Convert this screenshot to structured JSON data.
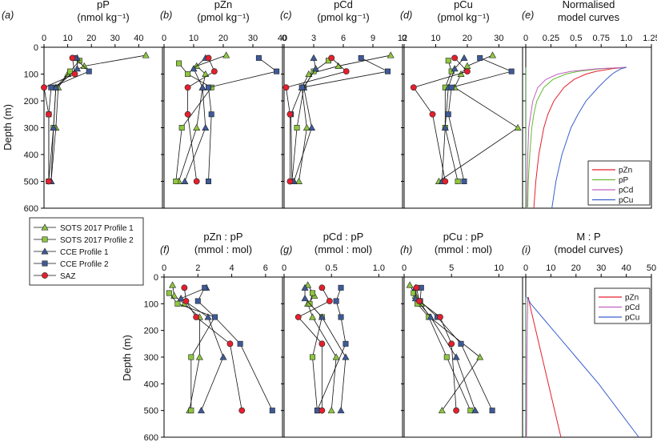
{
  "y_axis_label": "Depth (m)",
  "legend": {
    "entries": [
      {
        "label": "SOTS 2017 Profile 1",
        "series": "sots1"
      },
      {
        "label": "SOTS 2017 Profile 2",
        "series": "sots2"
      },
      {
        "label": "CCE Profile 1",
        "series": "cce1"
      },
      {
        "label": "CCE Profile 2",
        "series": "cce2"
      },
      {
        "label": "SAZ",
        "series": "saz"
      }
    ]
  },
  "styles": {
    "sots1": {
      "marker": "triangle",
      "color": "#8dc63f"
    },
    "sots2": {
      "marker": "square",
      "color": "#8dc63f"
    },
    "cce1": {
      "marker": "triangle",
      "color": "#3d5a99"
    },
    "cce2": {
      "marker": "square",
      "color": "#3d5a99"
    },
    "saz": {
      "marker": "circle",
      "color": "#e4202e"
    },
    "curve_colors": {
      "pZn": "#e4202e",
      "pP": "#66bb33",
      "pCd": "#c060c0",
      "pCu": "#3a5fcd"
    }
  },
  "chart_data": [
    {
      "id": "a",
      "panel_label": "(a)",
      "type": "line",
      "title_lines": [
        "pP",
        "(nmol kg⁻¹)"
      ],
      "xlim": [
        0,
        50
      ],
      "xticks": [
        "0",
        "10",
        "20",
        "30",
        "40"
      ],
      "ylim": [
        0,
        600
      ],
      "yticks": [
        "0",
        "100",
        "200",
        "300",
        "400",
        "500",
        "600"
      ],
      "series": [
        {
          "key": "sots1",
          "depths": [
            30,
            70,
            100,
            150,
            300,
            500
          ],
          "values": [
            43,
            17,
            10,
            6,
            5,
            3
          ]
        },
        {
          "key": "sots2",
          "depths": [
            50,
            90,
            150,
            300,
            500
          ],
          "values": [
            15,
            11,
            5,
            4,
            2
          ]
        },
        {
          "key": "cce1",
          "depths": [
            40,
            80,
            150,
            300,
            500
          ],
          "values": [
            14,
            14,
            5,
            4,
            3
          ]
        },
        {
          "key": "cce2",
          "depths": [
            40,
            90,
            150,
            250,
            500
          ],
          "values": [
            13,
            19,
            3,
            2,
            2
          ]
        },
        {
          "key": "saz",
          "depths": [
            40,
            100,
            150,
            250,
            500
          ],
          "values": [
            12,
            13,
            0,
            2,
            2
          ]
        }
      ]
    },
    {
      "id": "b",
      "panel_label": "(b)",
      "type": "line",
      "title_lines": [
        "pZn",
        "(pmol kg⁻¹)"
      ],
      "xlim": [
        0,
        40
      ],
      "xticks": [
        "0",
        "10",
        "20",
        "30",
        "40"
      ],
      "ylim": [
        0,
        600
      ],
      "series": [
        {
          "key": "sots1",
          "depths": [
            30,
            70,
            100,
            150,
            300,
            500
          ],
          "values": [
            21,
            11,
            14,
            13,
            11,
            5
          ]
        },
        {
          "key": "sots2",
          "depths": [
            60,
            100,
            150,
            300,
            500
          ],
          "values": [
            5,
            8,
            16,
            6,
            4
          ]
        },
        {
          "key": "cce1",
          "depths": [
            40,
            80,
            150,
            300,
            500
          ],
          "values": [
            14,
            10,
            13,
            14,
            7
          ]
        },
        {
          "key": "cce2",
          "depths": [
            40,
            90,
            150,
            250,
            500
          ],
          "values": [
            32,
            38,
            15,
            16,
            15
          ]
        },
        {
          "key": "saz",
          "depths": [
            40,
            90,
            150,
            250,
            500
          ],
          "values": [
            15,
            17,
            8,
            8,
            11
          ]
        }
      ]
    },
    {
      "id": "c",
      "panel_label": "(c)",
      "type": "line",
      "title_lines": [
        "pCd",
        "(pmol kg⁻¹)"
      ],
      "xlim": [
        0,
        12
      ],
      "xticks": [
        "0",
        "3",
        "6",
        "9",
        "12"
      ],
      "ylim": [
        0,
        600
      ],
      "series": [
        {
          "key": "sots1",
          "depths": [
            30,
            70,
            100,
            150,
            300,
            500
          ],
          "values": [
            10.8,
            5.5,
            2.5,
            1.8,
            2.3,
            1.5
          ]
        },
        {
          "key": "sots2",
          "depths": [
            50,
            90,
            150,
            300,
            500
          ],
          "values": [
            4.5,
            3.0,
            2.0,
            1.3,
            0.8
          ]
        },
        {
          "key": "cce1",
          "depths": [
            40,
            80,
            150,
            300,
            500
          ],
          "values": [
            3.0,
            3.2,
            2.0,
            2.8,
            1.0
          ]
        },
        {
          "key": "cce2",
          "depths": [
            40,
            90,
            150,
            250,
            500
          ],
          "values": [
            7.8,
            10.5,
            1.8,
            0.7,
            0.8
          ]
        },
        {
          "key": "saz",
          "depths": [
            40,
            90,
            150,
            250,
            500
          ],
          "values": [
            4.8,
            6.3,
            0.2,
            0.6,
            0.6
          ]
        }
      ]
    },
    {
      "id": "d",
      "panel_label": "(d)",
      "type": "line",
      "title_lines": [
        "pCu",
        "(pmol kg⁻¹)"
      ],
      "xlim": [
        0,
        37.5
      ],
      "xticks": [
        "0",
        "10",
        "20",
        "30"
      ],
      "ylim": [
        0,
        600
      ],
      "series": [
        {
          "key": "sots1",
          "depths": [
            30,
            70,
            100,
            150,
            300,
            500
          ],
          "values": [
            28,
            20,
            18,
            16,
            36,
            11
          ]
        },
        {
          "key": "sots2",
          "depths": [
            50,
            90,
            150,
            300,
            500
          ],
          "values": [
            14,
            15,
            13,
            13,
            17
          ]
        },
        {
          "key": "cce1",
          "depths": [
            40,
            80,
            150,
            300,
            500
          ],
          "values": [
            19,
            16,
            14,
            13,
            12
          ]
        },
        {
          "key": "cce2",
          "depths": [
            40,
            90,
            150,
            250,
            500
          ],
          "values": [
            24,
            34,
            15,
            14,
            19
          ]
        },
        {
          "key": "saz",
          "depths": [
            40,
            90,
            150,
            250,
            500
          ],
          "values": [
            16,
            20,
            3,
            9,
            13
          ]
        }
      ]
    },
    {
      "id": "e",
      "panel_label": "(e)",
      "type": "line",
      "title_lines": [
        "Normalised",
        "model curves"
      ],
      "xlim": [
        0,
        1.25
      ],
      "xticks": [
        "0",
        "0.25",
        "0.5",
        "0.75",
        "1.0",
        "1.25"
      ],
      "ylim": [
        0,
        600
      ],
      "legend_labels": [
        "pZn",
        "pP",
        "pCd",
        "pCu"
      ],
      "curves": [
        {
          "key": "pZn",
          "depths": [
            75,
            80,
            90,
            100,
            120,
            150,
            200,
            250,
            300,
            400,
            500,
            600
          ],
          "values": [
            1.0,
            0.86,
            0.7,
            0.6,
            0.48,
            0.38,
            0.28,
            0.22,
            0.18,
            0.13,
            0.1,
            0.08
          ]
        },
        {
          "key": "pP",
          "depths": [
            75,
            80,
            90,
            100,
            120,
            150,
            200,
            250,
            300,
            400,
            500,
            600
          ],
          "values": [
            1.0,
            0.76,
            0.52,
            0.4,
            0.27,
            0.18,
            0.11,
            0.08,
            0.06,
            0.04,
            0.025,
            0.02
          ]
        },
        {
          "key": "pCd",
          "depths": [
            75,
            80,
            90,
            100,
            120,
            150,
            200,
            250,
            300,
            400,
            500,
            600
          ],
          "values": [
            1.0,
            0.72,
            0.45,
            0.32,
            0.2,
            0.12,
            0.07,
            0.05,
            0.03,
            0.02,
            0.015,
            0.01
          ]
        },
        {
          "key": "pCu",
          "depths": [
            75,
            80,
            90,
            100,
            120,
            150,
            200,
            250,
            300,
            400,
            500,
            600
          ],
          "values": [
            1.0,
            0.95,
            0.9,
            0.86,
            0.8,
            0.72,
            0.6,
            0.52,
            0.45,
            0.36,
            0.3,
            0.26
          ]
        }
      ]
    },
    {
      "id": "f",
      "panel_label": "(f)",
      "type": "line",
      "title_lines": [
        "pZn : pP",
        "(mmol : mol)"
      ],
      "xlim": [
        0,
        7
      ],
      "xticks": [
        "0",
        "2",
        "4",
        "6"
      ],
      "ylim": [
        0,
        600
      ],
      "yticks": [
        "0",
        "100",
        "200",
        "300",
        "400",
        "500",
        "600"
      ],
      "series": [
        {
          "key": "sots1",
          "depths": [
            30,
            70,
            100,
            150,
            300,
            500
          ],
          "values": [
            0.5,
            0.6,
            1.2,
            2.1,
            2.1,
            1.5
          ]
        },
        {
          "key": "sots2",
          "depths": [
            60,
            100,
            150,
            300,
            500
          ],
          "values": [
            0.3,
            0.8,
            3.0,
            1.6,
            1.6
          ]
        },
        {
          "key": "cce1",
          "depths": [
            40,
            80,
            150,
            300,
            500
          ],
          "values": [
            2.5,
            1.0,
            2.6,
            3.5,
            2.2
          ]
        },
        {
          "key": "cce2",
          "depths": [
            40,
            90,
            150,
            250,
            500
          ],
          "values": [
            2.4,
            2.0,
            3.0,
            4.5,
            6.4
          ]
        },
        {
          "key": "saz",
          "depths": [
            40,
            90,
            150,
            250,
            500
          ],
          "values": [
            1.2,
            1.3,
            1.9,
            3.9,
            4.6
          ]
        }
      ]
    },
    {
      "id": "g",
      "panel_label": "(g)",
      "type": "line",
      "title_lines": [
        "pCd : pP",
        "(mmol : mol)"
      ],
      "xlim": [
        0,
        1.25
      ],
      "xticks": [
        "0",
        "0.5",
        "1.0"
      ],
      "ylim": [
        0,
        600
      ],
      "series": [
        {
          "key": "sots1",
          "depths": [
            30,
            70,
            100,
            150,
            300,
            500
          ],
          "values": [
            0.25,
            0.32,
            0.25,
            0.3,
            0.55,
            0.5
          ]
        },
        {
          "key": "sots2",
          "depths": [
            60,
            100,
            150,
            300,
            500
          ],
          "values": [
            0.3,
            0.27,
            0.4,
            0.3,
            0.35
          ]
        },
        {
          "key": "cce1",
          "depths": [
            40,
            80,
            150,
            300,
            500
          ],
          "values": [
            0.22,
            0.22,
            0.4,
            0.65,
            0.6
          ]
        },
        {
          "key": "cce2",
          "depths": [
            40,
            90,
            150,
            250,
            500
          ],
          "values": [
            0.6,
            0.55,
            0.6,
            0.65,
            0.35
          ]
        },
        {
          "key": "saz",
          "depths": [
            40,
            90,
            150,
            250,
            500
          ],
          "values": [
            0.4,
            0.48,
            0.15,
            0.4,
            0.4
          ]
        }
      ]
    },
    {
      "id": "h",
      "panel_label": "(h)",
      "type": "line",
      "title_lines": [
        "pCu : pP",
        "(mmol : mol)"
      ],
      "xlim": [
        0,
        12.5
      ],
      "xticks": [
        "0",
        "5",
        "10"
      ],
      "ylim": [
        0,
        600
      ],
      "series": [
        {
          "key": "sots1",
          "depths": [
            30,
            70,
            100,
            150,
            300,
            500
          ],
          "values": [
            0.6,
            1.2,
            1.8,
            2.7,
            8.0,
            4.0
          ]
        },
        {
          "key": "sots2",
          "depths": [
            60,
            100,
            150,
            300,
            500
          ],
          "values": [
            1.0,
            1.4,
            2.6,
            4.5,
            7.0
          ]
        },
        {
          "key": "cce1",
          "depths": [
            40,
            80,
            150,
            300,
            500
          ],
          "values": [
            1.2,
            1.2,
            2.8,
            5.5,
            7.5
          ]
        },
        {
          "key": "cce2",
          "depths": [
            40,
            90,
            150,
            250,
            500
          ],
          "values": [
            1.8,
            1.7,
            3.5,
            6.0,
            9.3
          ]
        },
        {
          "key": "saz",
          "depths": [
            40,
            90,
            150,
            250,
            500
          ],
          "values": [
            1.3,
            1.6,
            3.8,
            5.0,
            5.5
          ]
        }
      ]
    },
    {
      "id": "i",
      "panel_label": "(i)",
      "type": "line",
      "title_lines": [
        "M : P",
        "(model curves)"
      ],
      "xlim": [
        0,
        50
      ],
      "xticks": [
        "0",
        "10",
        "20",
        "30",
        "40",
        "50"
      ],
      "ylim": [
        0,
        600
      ],
      "legend_labels": [
        "pZn",
        "pCd",
        "pCu"
      ],
      "curves": [
        {
          "key": "pZn",
          "depths": [
            75,
            100,
            200,
            300,
            400,
            500,
            600
          ],
          "values": [
            1,
            1.5,
            4,
            6.5,
            9,
            11.5,
            14
          ]
        },
        {
          "key": "pCd",
          "depths": [
            75,
            100,
            200,
            300,
            400,
            500,
            600
          ],
          "values": [
            0.8,
            0.8,
            0.6,
            0.5,
            0.4,
            0.4,
            0.3
          ]
        },
        {
          "key": "pCu",
          "depths": [
            75,
            100,
            150,
            200,
            250,
            300,
            400,
            500,
            600
          ],
          "values": [
            0.5,
            2,
            6.5,
            11,
            15.5,
            20,
            29,
            37,
            45
          ]
        }
      ]
    }
  ]
}
